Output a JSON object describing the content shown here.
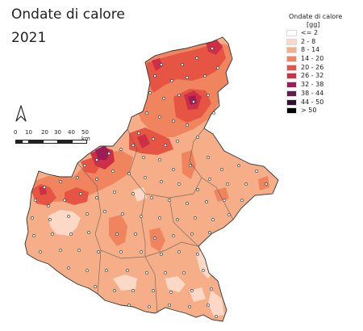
{
  "title": "Ondate di calore",
  "year": "2021",
  "legend": {
    "title": "Ondate di calore",
    "unit": "[gg]",
    "items": [
      {
        "label": "<= 2",
        "color": "#ffffff"
      },
      {
        "label": "2 - 8",
        "color": "#fbd9c6"
      },
      {
        "label": "8 - 14",
        "color": "#f5ae88"
      },
      {
        "label": "14 - 20",
        "color": "#f0845e"
      },
      {
        "label": "20 - 26",
        "color": "#e65543"
      },
      {
        "label": "26 - 32",
        "color": "#cc2f46"
      },
      {
        "label": "32 - 38",
        "color": "#9c1c56"
      },
      {
        "label": "38 - 44",
        "color": "#641a52"
      },
      {
        "label": "44 - 50",
        "color": "#33102f"
      },
      {
        "label": "> 50",
        "color": "#000000"
      }
    ]
  },
  "scale": {
    "ticks": [
      "0",
      "10",
      "20",
      "30",
      "40",
      "50 km"
    ]
  },
  "north_label": "N"
}
